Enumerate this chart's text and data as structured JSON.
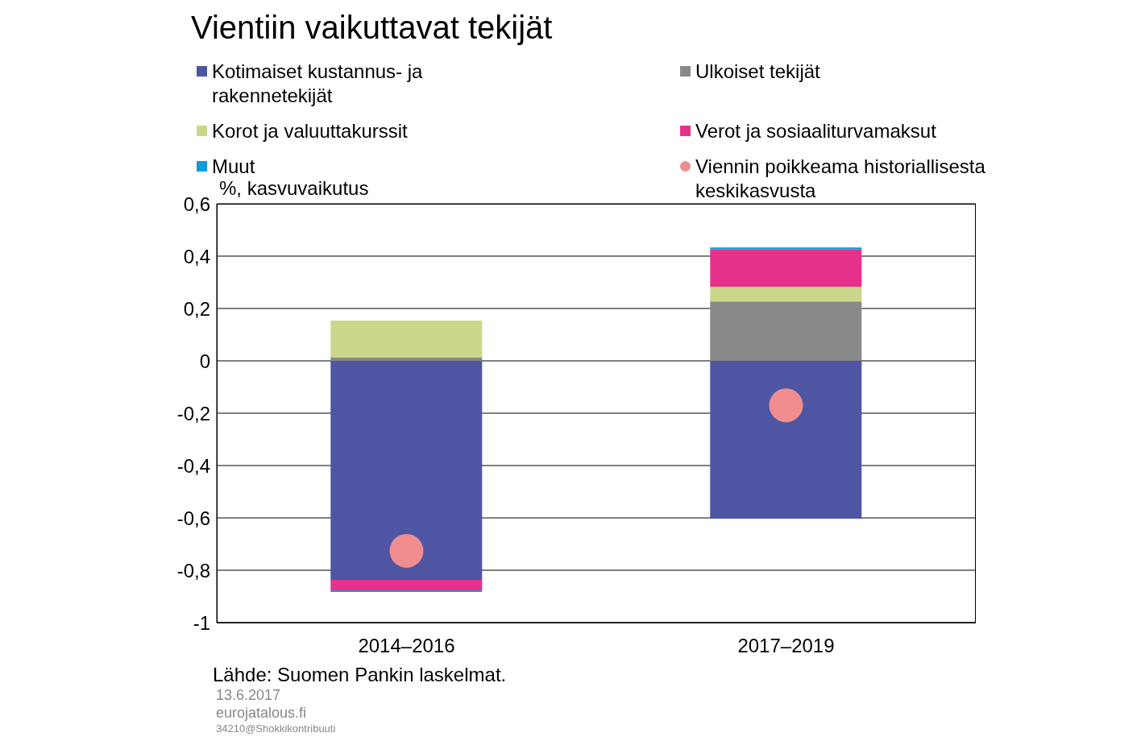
{
  "chart_data": {
    "type": "bar",
    "title": "Vientiin vaikuttavat tekijät",
    "ylabel": "%, kasvuvaikutus",
    "categories": [
      "2014–2016",
      "2017–2019"
    ],
    "stacked": true,
    "series": [
      {
        "name": "Kotimaiset kustannus- ja rakennetekijät",
        "color": "#4e56a4",
        "values": [
          -0.837,
          -0.603
        ]
      },
      {
        "name": "Ulkoiset tekijät",
        "color": "#898989",
        "values": [
          0.012,
          0.227
        ]
      },
      {
        "name": "Korot ja valuuttakurssit",
        "color": "#cbd68b",
        "values": [
          0.142,
          0.056
        ]
      },
      {
        "name": "Verot ja sosiaaliturvamaksut",
        "color": "#e6318a",
        "values": [
          -0.04,
          0.144
        ]
      },
      {
        "name": "Muut",
        "color": "#0d9ddb",
        "values": [
          -0.006,
          0.006
        ]
      },
      {
        "name": "Viennin poikkeama historiallisesta keskikasvusta",
        "type": "scatter",
        "marker": "circle",
        "color": "#f08d8f",
        "values": [
          -0.726,
          -0.17
        ]
      }
    ],
    "ylim": [
      -1,
      0.6
    ],
    "yticks": [
      {
        "value": -1,
        "label": "-1"
      },
      {
        "value": -0.8,
        "label": "-0,8"
      },
      {
        "value": -0.6,
        "label": "-0,6"
      },
      {
        "value": -0.4,
        "label": "-0,4"
      },
      {
        "value": -0.2,
        "label": "-0,2"
      },
      {
        "value": 0,
        "label": "0"
      },
      {
        "value": 0.2,
        "label": "0,2"
      },
      {
        "value": 0.4,
        "label": "0,4"
      },
      {
        "value": 0.6,
        "label": "0,6"
      }
    ],
    "grid": "y",
    "legend": "top",
    "annotations": [
      "Lähde: Suomen Pankin laskelmat.",
      "13.6.2017",
      "eurojatalous.fi",
      "34210@Shokkikontribuuti"
    ]
  }
}
